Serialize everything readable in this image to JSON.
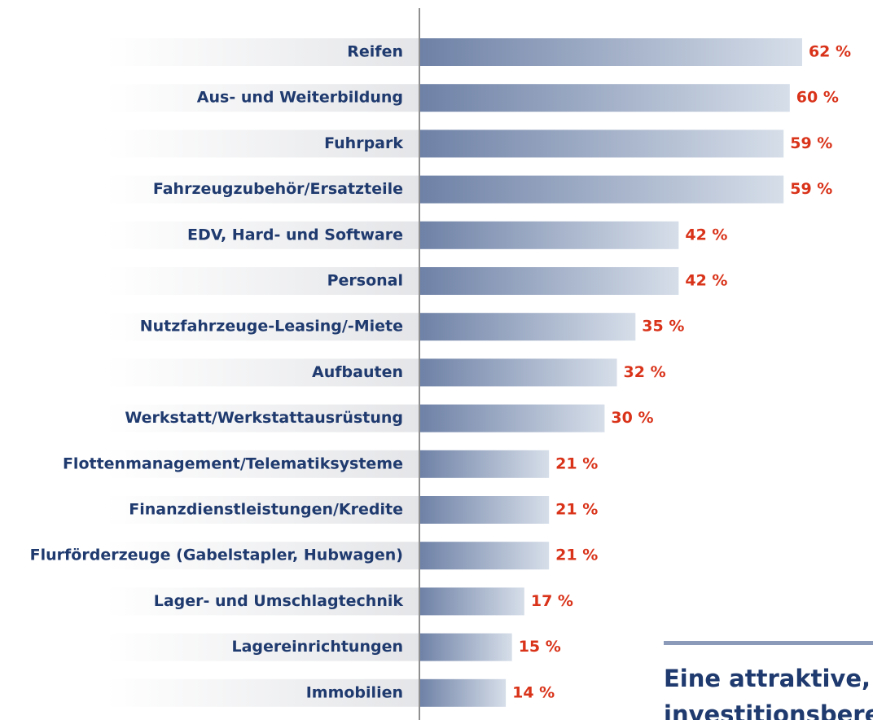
{
  "chart_data": {
    "type": "bar",
    "orientation": "horizontal",
    "categories": [
      "Reifen",
      "Aus- und Weiterbildung",
      "Fuhrpark",
      "Fahrzeugzubehör/Ersatzteile",
      "EDV, Hard- und Software",
      "Personal",
      "Nutzfahrzeuge-Leasing/-Miete",
      "Aufbauten",
      "Werkstatt/Werkstattausrüstung",
      "Flottenmanagement/Telematiksysteme",
      "Finanzdienstleistungen/Kredite",
      "Flurförderzeuge (Gabelstapler, Hubwagen)",
      "Lager- und Umschlagtechnik",
      "Lagereinrichtungen",
      "Immobilien"
    ],
    "values": [
      62,
      60,
      59,
      59,
      42,
      42,
      35,
      32,
      30,
      21,
      21,
      21,
      17,
      15,
      14
    ],
    "value_labels": [
      "62 %",
      "60 %",
      "59 %",
      "59 %",
      "42 %",
      "42 %",
      "35 %",
      "32 %",
      "30 %",
      "21 %",
      "21 %",
      "21 %",
      "17 %",
      "15 %",
      "14 %"
    ],
    "colors": [
      "#6e81a6",
      "#d6dee9"
    ],
    "annotation": [
      "Eine attraktive,",
      "investitionsbere"
    ]
  }
}
